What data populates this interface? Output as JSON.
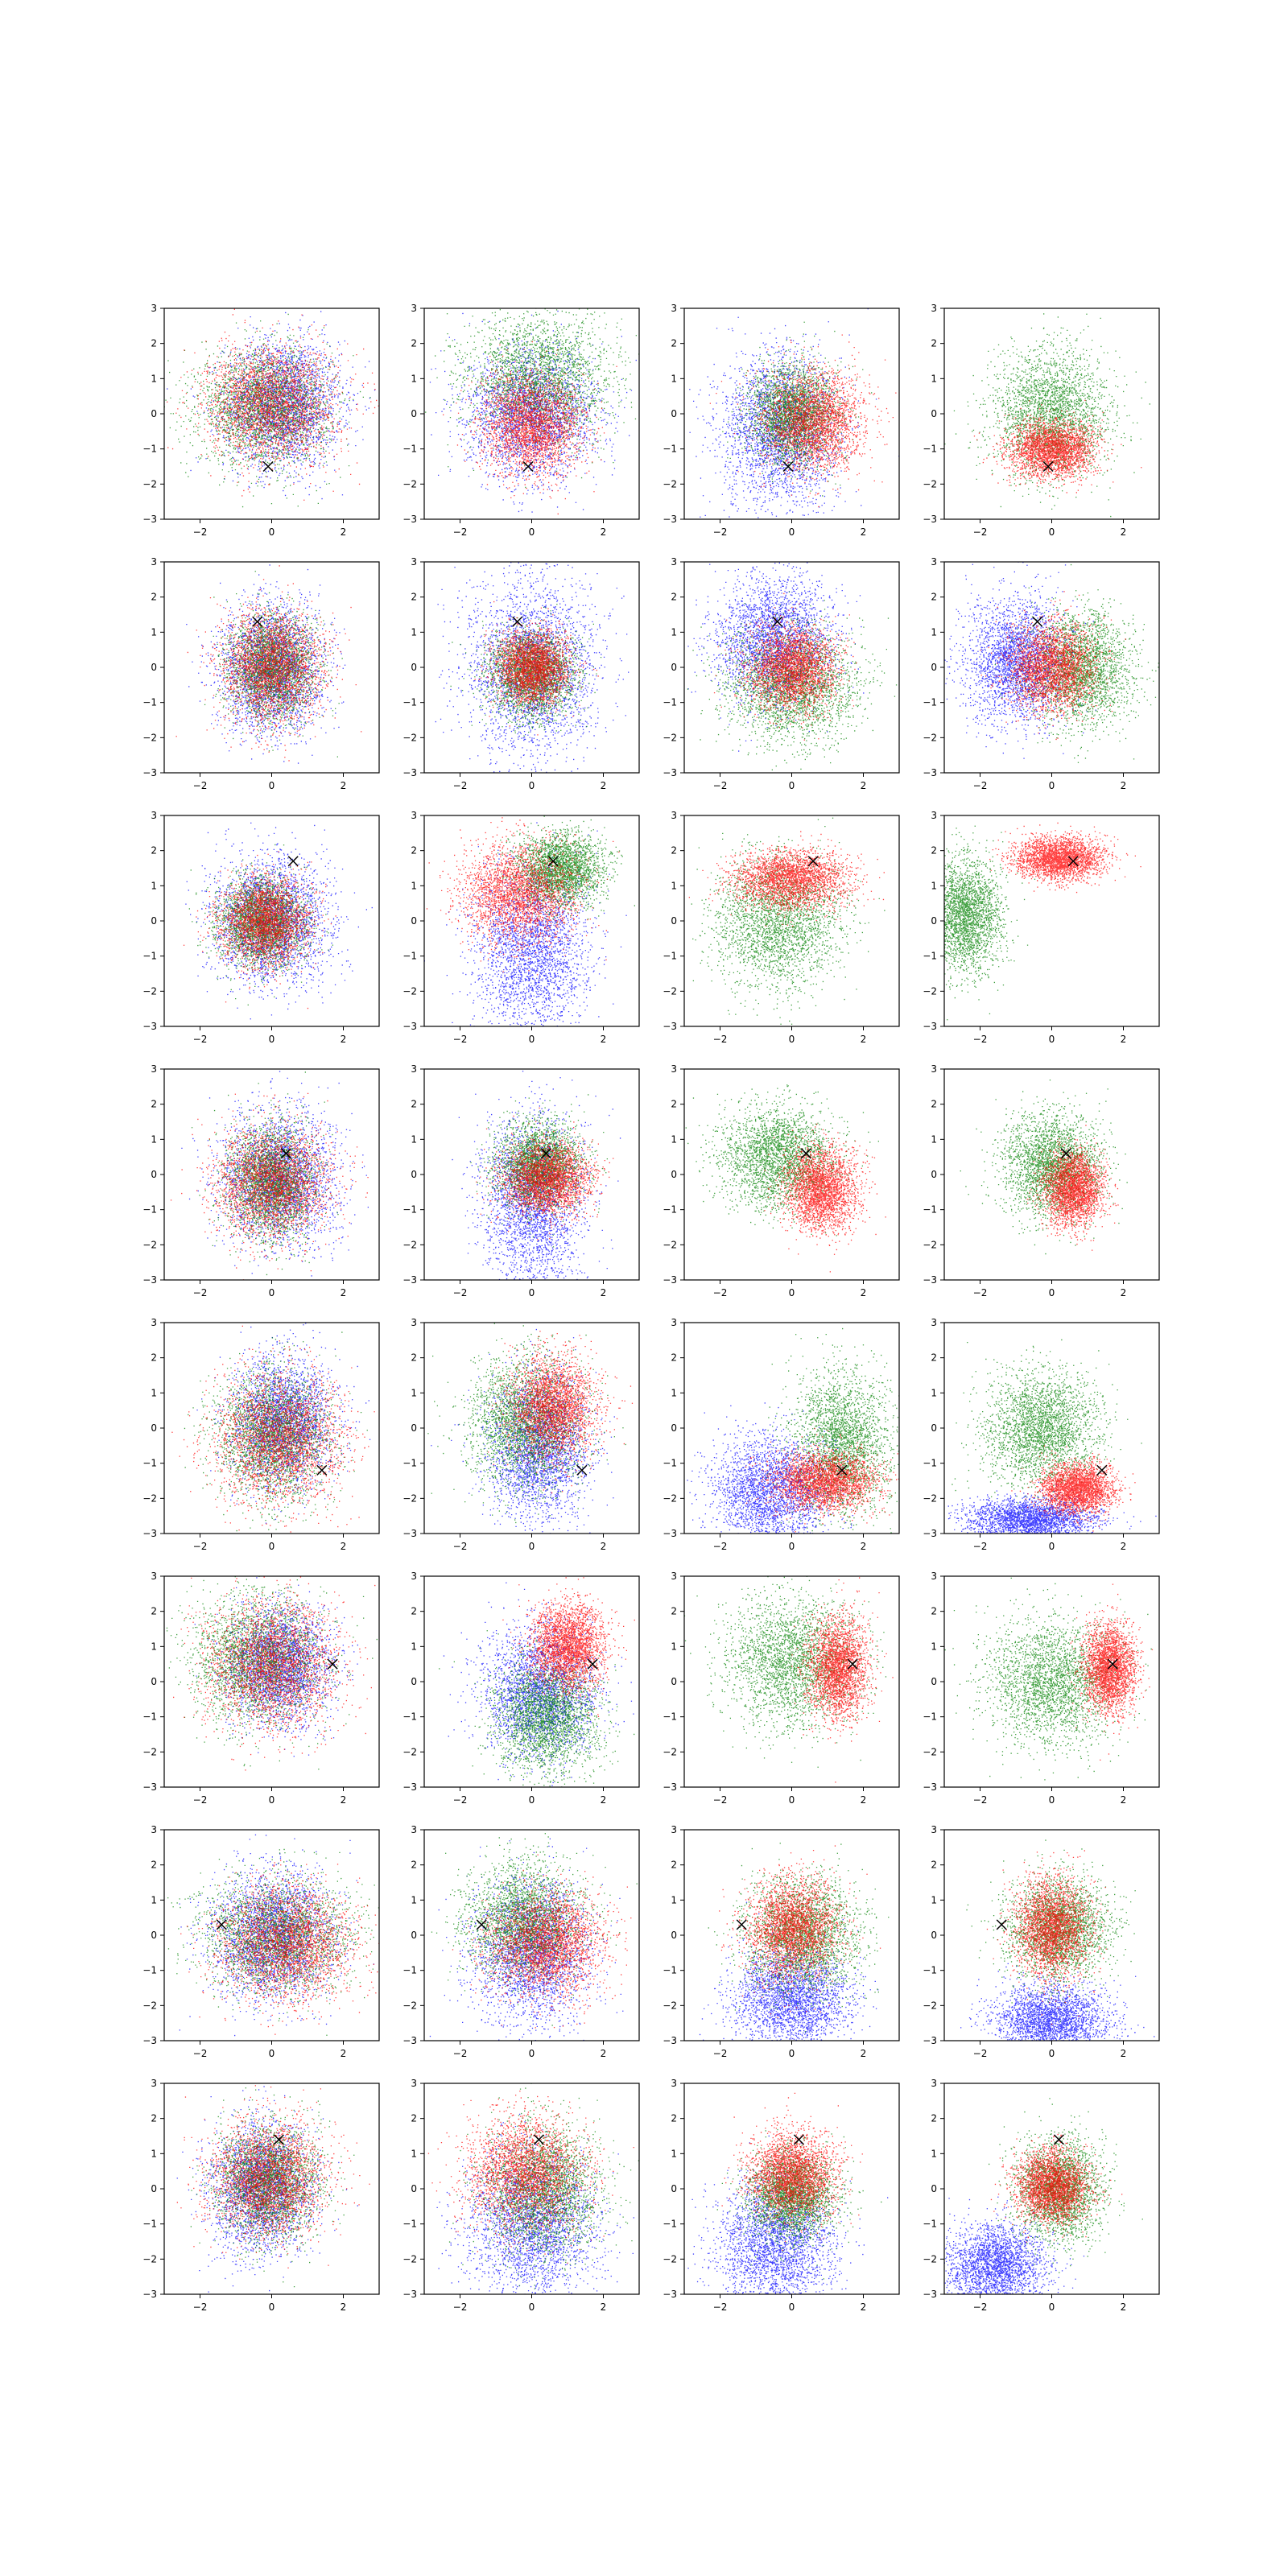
{
  "colors": {
    "blue": "#0000ff",
    "green": "#008000",
    "red": "#ff0000",
    "marker": "#000000"
  },
  "chart_data": {
    "type": "scatter",
    "grid": false,
    "legend": false,
    "layout": {
      "rows": 8,
      "cols": 4
    },
    "xlim": [
      -3,
      3
    ],
    "ylim": [
      -3,
      3
    ],
    "xticks": [
      "−2",
      "0",
      "2"
    ],
    "yticks": [
      "−3",
      "−2",
      "−1",
      "0",
      "1",
      "2",
      "3"
    ],
    "x_marker": "×",
    "rows": [
      {
        "marker": [
          -0.1,
          -1.5
        ],
        "panels": [
          {
            "clusters": [
              {
                "color": "blue",
                "cx": 0.3,
                "cy": 0.3,
                "sx": 0.8,
                "sy": 0.9
              },
              {
                "color": "green",
                "cx": -0.2,
                "cy": 0.2,
                "sx": 0.9,
                "sy": 0.8
              },
              {
                "color": "red",
                "cx": 0.0,
                "cy": 0.3,
                "sx": 0.9,
                "sy": 0.8
              }
            ]
          },
          {
            "clusters": [
              {
                "color": "blue",
                "cx": 0.0,
                "cy": 0.0,
                "sx": 0.9,
                "sy": 0.9
              },
              {
                "color": "green",
                "cx": 0.2,
                "cy": 1.0,
                "sx": 1.0,
                "sy": 0.9
              },
              {
                "color": "red",
                "cx": 0.0,
                "cy": -0.3,
                "sx": 0.7,
                "sy": 0.7
              }
            ]
          },
          {
            "clusters": [
              {
                "color": "blue",
                "cx": -0.4,
                "cy": -0.5,
                "sx": 0.8,
                "sy": 1.1
              },
              {
                "color": "green",
                "cx": 0.0,
                "cy": 0.0,
                "sx": 0.6,
                "sy": 0.7
              },
              {
                "color": "red",
                "cx": 0.6,
                "cy": -0.2,
                "sx": 0.7,
                "sy": 0.7
              }
            ]
          },
          {
            "clusters": [
              {
                "color": "green",
                "cx": 0.0,
                "cy": 0.0,
                "sx": 0.8,
                "sy": 0.9
              },
              {
                "color": "red",
                "cx": 0.0,
                "cy": -1.0,
                "sx": 0.6,
                "sy": 0.4
              }
            ]
          }
        ]
      },
      {
        "marker": [
          -0.4,
          1.3
        ],
        "panels": [
          {
            "clusters": [
              {
                "color": "blue",
                "cx": 0.0,
                "cy": 0.0,
                "sx": 0.7,
                "sy": 0.9
              },
              {
                "color": "green",
                "cx": 0.0,
                "cy": 0.0,
                "sx": 0.6,
                "sy": 0.7
              },
              {
                "color": "red",
                "cx": 0.0,
                "cy": 0.0,
                "sx": 0.7,
                "sy": 0.8
              }
            ]
          },
          {
            "clusters": [
              {
                "color": "blue",
                "cx": 0.0,
                "cy": 0.0,
                "sx": 0.9,
                "sy": 1.3
              },
              {
                "color": "green",
                "cx": 0.0,
                "cy": -0.2,
                "sx": 0.6,
                "sy": 0.6
              },
              {
                "color": "red",
                "cx": 0.0,
                "cy": 0.0,
                "sx": 0.5,
                "sy": 0.5
              }
            ]
          },
          {
            "clusters": [
              {
                "color": "blue",
                "cx": -0.5,
                "cy": 0.8,
                "sx": 0.8,
                "sy": 0.9
              },
              {
                "color": "green",
                "cx": 0.0,
                "cy": -0.5,
                "sx": 0.9,
                "sy": 0.8
              },
              {
                "color": "red",
                "cx": 0.0,
                "cy": 0.0,
                "sx": 0.6,
                "sy": 0.6
              }
            ]
          },
          {
            "clusters": [
              {
                "color": "blue",
                "cx": -1.0,
                "cy": 0.2,
                "sx": 0.7,
                "sy": 0.9
              },
              {
                "color": "green",
                "cx": 0.8,
                "cy": 0.0,
                "sx": 0.7,
                "sy": 0.8
              },
              {
                "color": "red",
                "cx": 0.0,
                "cy": 0.0,
                "sx": 0.6,
                "sy": 0.6
              }
            ]
          }
        ]
      },
      {
        "marker": [
          0.6,
          1.7
        ],
        "panels": [
          {
            "clusters": [
              {
                "color": "blue",
                "cx": 0.0,
                "cy": 0.0,
                "sx": 0.8,
                "sy": 0.9
              },
              {
                "color": "green",
                "cx": -0.3,
                "cy": 0.0,
                "sx": 0.6,
                "sy": 0.6
              },
              {
                "color": "red",
                "cx": -0.2,
                "cy": 0.0,
                "sx": 0.6,
                "sy": 0.6
              }
            ]
          },
          {
            "clusters": [
              {
                "color": "blue",
                "cx": 0.0,
                "cy": -0.8,
                "sx": 0.8,
                "sy": 1.2
              },
              {
                "color": "green",
                "cx": 0.8,
                "cy": 1.5,
                "sx": 0.6,
                "sy": 0.5
              },
              {
                "color": "red",
                "cx": -0.4,
                "cy": 0.8,
                "sx": 0.8,
                "sy": 0.7
              }
            ]
          },
          {
            "clusters": [
              {
                "color": "green",
                "cx": -0.4,
                "cy": 0.0,
                "sx": 0.9,
                "sy": 0.9
              },
              {
                "color": "red",
                "cx": 0.0,
                "cy": 1.2,
                "sx": 0.8,
                "sy": 0.4
              }
            ]
          },
          {
            "clusters": [
              {
                "color": "green",
                "cx": -2.4,
                "cy": 0.2,
                "sx": 0.5,
                "sy": 0.8
              },
              {
                "color": "red",
                "cx": 0.2,
                "cy": 1.8,
                "sx": 0.6,
                "sy": 0.3
              }
            ]
          }
        ]
      },
      {
        "marker": [
          0.4,
          0.6
        ],
        "panels": [
          {
            "clusters": [
              {
                "color": "blue",
                "cx": 0.2,
                "cy": -0.1,
                "sx": 0.8,
                "sy": 0.9
              },
              {
                "color": "green",
                "cx": 0.0,
                "cy": -0.2,
                "sx": 0.6,
                "sy": 0.8
              },
              {
                "color": "red",
                "cx": 0.0,
                "cy": -0.2,
                "sx": 0.8,
                "sy": 0.8
              }
            ]
          },
          {
            "clusters": [
              {
                "color": "blue",
                "cx": 0.0,
                "cy": -0.8,
                "sx": 0.7,
                "sy": 1.2
              },
              {
                "color": "green",
                "cx": 0.2,
                "cy": 0.3,
                "sx": 0.6,
                "sy": 0.6
              },
              {
                "color": "red",
                "cx": 0.4,
                "cy": -0.1,
                "sx": 0.6,
                "sy": 0.5
              }
            ]
          },
          {
            "clusters": [
              {
                "color": "green",
                "cx": -0.4,
                "cy": 0.5,
                "sx": 0.8,
                "sy": 0.7
              },
              {
                "color": "red",
                "cx": 0.8,
                "cy": -0.4,
                "sx": 0.5,
                "sy": 0.6
              }
            ]
          },
          {
            "clusters": [
              {
                "color": "green",
                "cx": 0.0,
                "cy": 0.3,
                "sx": 0.7,
                "sy": 0.7
              },
              {
                "color": "red",
                "cx": 0.6,
                "cy": -0.4,
                "sx": 0.4,
                "sy": 0.5
              }
            ]
          }
        ]
      },
      {
        "marker": [
          1.4,
          -1.2
        ],
        "panels": [
          {
            "clusters": [
              {
                "color": "blue",
                "cx": 0.3,
                "cy": 0.2,
                "sx": 0.7,
                "sy": 0.9
              },
              {
                "color": "green",
                "cx": 0.0,
                "cy": -0.2,
                "sx": 0.8,
                "sy": 0.9
              },
              {
                "color": "red",
                "cx": 0.2,
                "cy": -0.3,
                "sx": 0.9,
                "sy": 0.9
              }
            ]
          },
          {
            "clusters": [
              {
                "color": "blue",
                "cx": 0.2,
                "cy": -0.6,
                "sx": 0.7,
                "sy": 1.0
              },
              {
                "color": "green",
                "cx": -0.2,
                "cy": 0.2,
                "sx": 0.8,
                "sy": 0.9
              },
              {
                "color": "red",
                "cx": 0.6,
                "cy": 0.6,
                "sx": 0.6,
                "sy": 0.7
              }
            ]
          },
          {
            "clusters": [
              {
                "color": "blue",
                "cx": -0.6,
                "cy": -1.8,
                "sx": 0.8,
                "sy": 0.8
              },
              {
                "color": "green",
                "cx": 1.4,
                "cy": -0.4,
                "sx": 0.7,
                "sy": 1.0
              },
              {
                "color": "red",
                "cx": 0.9,
                "cy": -1.5,
                "sx": 0.7,
                "sy": 0.4
              }
            ]
          },
          {
            "clusters": [
              {
                "color": "blue",
                "cx": -0.6,
                "cy": -2.6,
                "sx": 0.9,
                "sy": 0.3
              },
              {
                "color": "green",
                "cx": -0.3,
                "cy": 0.0,
                "sx": 0.8,
                "sy": 0.8
              },
              {
                "color": "red",
                "cx": 0.7,
                "cy": -1.7,
                "sx": 0.5,
                "sy": 0.35
              }
            ]
          }
        ]
      },
      {
        "marker": [
          1.7,
          0.5
        ],
        "panels": [
          {
            "clusters": [
              {
                "color": "blue",
                "cx": 0.2,
                "cy": 0.5,
                "sx": 0.7,
                "sy": 0.8
              },
              {
                "color": "green",
                "cx": -0.4,
                "cy": 0.6,
                "sx": 0.9,
                "sy": 0.9
              },
              {
                "color": "red",
                "cx": 0.0,
                "cy": 0.5,
                "sx": 0.9,
                "sy": 0.9
              }
            ]
          },
          {
            "clusters": [
              {
                "color": "blue",
                "cx": 0.2,
                "cy": -0.3,
                "sx": 0.8,
                "sy": 0.9
              },
              {
                "color": "green",
                "cx": 0.4,
                "cy": -1.0,
                "sx": 0.7,
                "sy": 0.8
              },
              {
                "color": "red",
                "cx": 1.0,
                "cy": 1.0,
                "sx": 0.5,
                "sy": 0.6
              }
            ]
          },
          {
            "clusters": [
              {
                "color": "green",
                "cx": 0.0,
                "cy": 0.6,
                "sx": 0.9,
                "sy": 0.9
              },
              {
                "color": "red",
                "cx": 1.3,
                "cy": 0.4,
                "sx": 0.4,
                "sy": 0.7
              }
            ]
          },
          {
            "clusters": [
              {
                "color": "green",
                "cx": 0.0,
                "cy": 0.0,
                "sx": 0.9,
                "sy": 0.9
              },
              {
                "color": "red",
                "cx": 1.6,
                "cy": 0.4,
                "sx": 0.35,
                "sy": 0.6
              }
            ]
          }
        ]
      },
      {
        "marker": [
          -1.4,
          0.3
        ],
        "panels": [
          {
            "clusters": [
              {
                "color": "blue",
                "cx": 0.0,
                "cy": 0.0,
                "sx": 0.8,
                "sy": 0.9
              },
              {
                "color": "green",
                "cx": 0.1,
                "cy": 0.0,
                "sx": 1.0,
                "sy": 0.8
              },
              {
                "color": "red",
                "cx": 0.4,
                "cy": -0.2,
                "sx": 0.9,
                "sy": 0.8
              }
            ]
          },
          {
            "clusters": [
              {
                "color": "blue",
                "cx": 0.0,
                "cy": -0.5,
                "sx": 0.8,
                "sy": 1.0
              },
              {
                "color": "green",
                "cx": -0.2,
                "cy": 0.4,
                "sx": 0.8,
                "sy": 0.8
              },
              {
                "color": "red",
                "cx": 0.4,
                "cy": -0.2,
                "sx": 0.8,
                "sy": 0.7
              }
            ]
          },
          {
            "clusters": [
              {
                "color": "blue",
                "cx": 0.0,
                "cy": -1.8,
                "sx": 0.8,
                "sy": 0.7
              },
              {
                "color": "green",
                "cx": 0.3,
                "cy": 0.0,
                "sx": 0.8,
                "sy": 0.8
              },
              {
                "color": "red",
                "cx": 0.0,
                "cy": 0.2,
                "sx": 0.6,
                "sy": 0.7
              }
            ]
          },
          {
            "clusters": [
              {
                "color": "blue",
                "cx": 0.0,
                "cy": -2.4,
                "sx": 0.8,
                "sy": 0.5
              },
              {
                "color": "green",
                "cx": 0.2,
                "cy": 0.2,
                "sx": 0.7,
                "sy": 0.7
              },
              {
                "color": "red",
                "cx": 0.0,
                "cy": 0.2,
                "sx": 0.5,
                "sy": 0.7
              }
            ]
          }
        ]
      },
      {
        "marker": [
          0.2,
          1.4
        ],
        "panels": [
          {
            "clusters": [
              {
                "color": "blue",
                "cx": -0.3,
                "cy": 0.0,
                "sx": 0.7,
                "sy": 0.9
              },
              {
                "color": "green",
                "cx": -0.1,
                "cy": 0.2,
                "sx": 0.7,
                "sy": 0.8
              },
              {
                "color": "red",
                "cx": -0.1,
                "cy": 0.3,
                "sx": 0.8,
                "sy": 0.8
              }
            ]
          },
          {
            "clusters": [
              {
                "color": "blue",
                "cx": 0.0,
                "cy": -1.0,
                "sx": 0.9,
                "sy": 1.0
              },
              {
                "color": "green",
                "cx": 0.3,
                "cy": 0.0,
                "sx": 0.8,
                "sy": 0.9
              },
              {
                "color": "red",
                "cx": -0.2,
                "cy": 0.5,
                "sx": 0.8,
                "sy": 0.8
              }
            ]
          },
          {
            "clusters": [
              {
                "color": "blue",
                "cx": -0.5,
                "cy": -1.6,
                "sx": 0.8,
                "sy": 0.9
              },
              {
                "color": "green",
                "cx": 0.0,
                "cy": -0.2,
                "sx": 0.6,
                "sy": 0.6
              },
              {
                "color": "red",
                "cx": 0.0,
                "cy": 0.4,
                "sx": 0.6,
                "sy": 0.6
              }
            ]
          },
          {
            "clusters": [
              {
                "color": "blue",
                "cx": -1.6,
                "cy": -2.2,
                "sx": 0.7,
                "sy": 0.6
              },
              {
                "color": "green",
                "cx": 0.2,
                "cy": 0.0,
                "sx": 0.6,
                "sy": 0.7
              },
              {
                "color": "red",
                "cx": 0.0,
                "cy": 0.1,
                "sx": 0.5,
                "sy": 0.5
              }
            ]
          }
        ]
      }
    ]
  }
}
